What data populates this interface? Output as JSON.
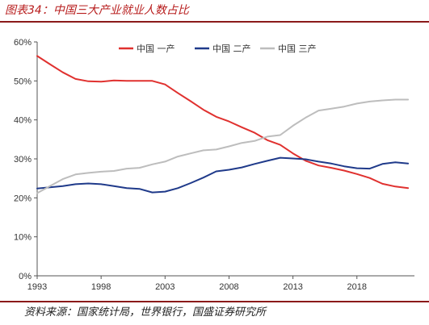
{
  "figure": {
    "title": "图表34：中国三大产业就业人数占比",
    "source": "资料来源：国家统计局，世界银行，国盛证券研究所"
  },
  "chart_data": {
    "type": "line",
    "title": "",
    "xlabel": "",
    "ylabel": "",
    "x": [
      1993,
      1994,
      1995,
      1996,
      1997,
      1998,
      1999,
      2000,
      2001,
      2002,
      2003,
      2004,
      2005,
      2006,
      2007,
      2008,
      2009,
      2010,
      2011,
      2012,
      2013,
      2014,
      2015,
      2016,
      2017,
      2018,
      2019,
      2020,
      2021,
      2022
    ],
    "xlim": [
      1993,
      2022.5
    ],
    "xticks": [
      1993,
      1998,
      2003,
      2008,
      2013,
      2018
    ],
    "ylim": [
      0,
      60
    ],
    "yticks": [
      0,
      10,
      20,
      30,
      40,
      50,
      60
    ],
    "ytick_labels": [
      "0%",
      "10%",
      "20%",
      "30%",
      "40%",
      "50%",
      "60%"
    ],
    "grid": false,
    "legend_position": "top-right",
    "series": [
      {
        "name": "中国 一产",
        "color": "#e0312f",
        "values": [
          56.4,
          54.3,
          52.2,
          50.5,
          49.9,
          49.8,
          50.1,
          50.0,
          50.0,
          50.0,
          49.1,
          46.9,
          44.8,
          42.6,
          40.8,
          39.6,
          38.1,
          36.7,
          34.8,
          33.6,
          31.4,
          29.5,
          28.3,
          27.7,
          27.0,
          26.1,
          25.1,
          23.6,
          22.9,
          22.5
        ]
      },
      {
        "name": "中国 二产",
        "color": "#1f3a8a",
        "values": [
          22.4,
          22.7,
          23.0,
          23.5,
          23.7,
          23.5,
          23.0,
          22.5,
          22.3,
          21.4,
          21.6,
          22.5,
          23.8,
          25.2,
          26.8,
          27.2,
          27.8,
          28.7,
          29.5,
          30.3,
          30.1,
          29.9,
          29.3,
          28.8,
          28.1,
          27.6,
          27.5,
          28.7,
          29.1,
          28.8
        ]
      },
      {
        "name": "中国 三产",
        "color": "#bdbdbd",
        "values": [
          21.2,
          23.0,
          24.8,
          26.0,
          26.4,
          26.7,
          26.9,
          27.5,
          27.7,
          28.6,
          29.3,
          30.6,
          31.4,
          32.2,
          32.4,
          33.2,
          34.1,
          34.6,
          35.7,
          36.1,
          38.5,
          40.6,
          42.4,
          42.9,
          43.4,
          44.2,
          44.7,
          45.0,
          45.2,
          45.2
        ]
      }
    ]
  }
}
